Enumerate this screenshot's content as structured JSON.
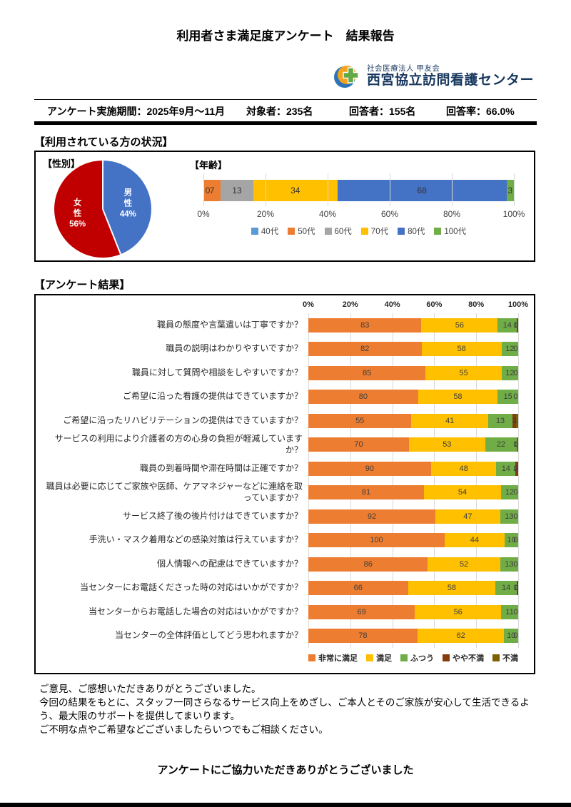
{
  "page_title": "利用者さま満足度アンケート　結果報告",
  "logo": {
    "org_small": "社会医療法人 甲友会",
    "org_name": "西宮協立訪問看護センター"
  },
  "info_bar": {
    "period": "アンケート実施期間：2025年9月～11月",
    "target": "対象者：235名",
    "respondents": "回答者：155名",
    "rate": "回答率：66.0%"
  },
  "section_status": {
    "title": "【利用されている方の状況】"
  },
  "section_results": {
    "title": "【アンケート結果】"
  },
  "chart_data": [
    {
      "id": "gender",
      "type": "pie",
      "title": "【性別】",
      "slices": [
        {
          "label": "男性",
          "value": 44,
          "display": "44%",
          "color": "#4472C4",
          "text_color": "#FFFFFF"
        },
        {
          "label": "女性",
          "value": 56,
          "display": "56%",
          "color": "#C00000",
          "text_color": "#FFFFFF"
        }
      ]
    },
    {
      "id": "age",
      "type": "bar",
      "subtype": "stacked-100-horizontal",
      "title": "【年齢】",
      "series": [
        {
          "name": "40代",
          "color": "#5B9BD5",
          "value": 0
        },
        {
          "name": "50代",
          "color": "#ED7D31",
          "value": 7
        },
        {
          "name": "60代",
          "color": "#A5A5A5",
          "value": 13
        },
        {
          "name": "70代",
          "color": "#FFC000",
          "value": 34
        },
        {
          "name": "80代",
          "color": "#4472C4",
          "value": 68
        },
        {
          "name": "100代",
          "color": "#70AD47",
          "value": 3
        }
      ],
      "axis_ticks": [
        "0%",
        "20%",
        "40%",
        "60%",
        "80%",
        "100%"
      ],
      "legend_position": "bottom"
    },
    {
      "id": "survey",
      "type": "bar",
      "subtype": "stacked-100-horizontal",
      "axis_ticks": [
        "0%",
        "20%",
        "40%",
        "60%",
        "80%",
        "100%"
      ],
      "legend": [
        {
          "name": "非常に満足",
          "color": "#ED7D31"
        },
        {
          "name": "満足",
          "color": "#FFC000"
        },
        {
          "name": "ふつう",
          "color": "#70AD47"
        },
        {
          "name": "やや不満",
          "color": "#843C0C"
        },
        {
          "name": "不満",
          "color": "#7F6000"
        }
      ],
      "rows": [
        {
          "label": "職員の態度や言葉遣いは丁寧ですか？",
          "values": [
            83,
            56,
            14,
            1,
            0
          ]
        },
        {
          "label": "職員の説明はわかりやすいですか？",
          "values": [
            82,
            58,
            12,
            0,
            0
          ]
        },
        {
          "label": "職員に対して質問や相談をしやすいですか？",
          "values": [
            85,
            55,
            12,
            0,
            0
          ]
        },
        {
          "label": "ご希望に沿った看護の提供はできていますか？",
          "values": [
            80,
            58,
            15,
            0,
            0
          ]
        },
        {
          "label": "ご希望に沿ったリハビリテーションの提供はできていますか？",
          "values": [
            55,
            41,
            13,
            2,
            1
          ]
        },
        {
          "label": "サービスの利用により介護者の方の心身の負担が軽減していますか？",
          "values": [
            70,
            53,
            22,
            0,
            1
          ]
        },
        {
          "label": "職員の到着時間や滞在時間は正確ですか？",
          "values": [
            90,
            48,
            14,
            2,
            0
          ]
        },
        {
          "label": "職員は必要に応じてご家族や医師、ケアマネジャーなどに連絡を取っていますか？",
          "values": [
            81,
            54,
            12,
            0,
            0
          ]
        },
        {
          "label": "サービス終了後の後片付けはできていますか？",
          "values": [
            92,
            47,
            13,
            0,
            0
          ]
        },
        {
          "label": "手洗い・マスク着用などの感染対策は行えていますか？",
          "values": [
            100,
            44,
            10,
            0,
            0
          ]
        },
        {
          "label": "個人情報への配慮はできていますか？",
          "values": [
            86,
            52,
            13,
            0,
            0
          ]
        },
        {
          "label": "当センターにお電話くださった時の対応はいかがですか？",
          "values": [
            66,
            58,
            14,
            1,
            0
          ]
        },
        {
          "label": "当センターからお電話した場合の対応はいかがですか？",
          "values": [
            69,
            56,
            11,
            0,
            0
          ]
        },
        {
          "label": "当センターの全体評価としてどう思われますか？",
          "values": [
            78,
            62,
            10,
            0,
            0
          ]
        }
      ]
    }
  ],
  "footer": {
    "paragraphs": [
      "ご意見、ご感想いただきありがとうございました。",
      "今回の結果をもとに、スタッフ一同さらなるサービス向上をめざし、ご本人とそのご家族が安心して生活できるよう、最大限のサポートを提供してまいります。",
      "ご不明な点やご希望などございましたらいつでもご相談ください。"
    ],
    "thanks": "アンケートにご協力いただきありがとうございました"
  }
}
